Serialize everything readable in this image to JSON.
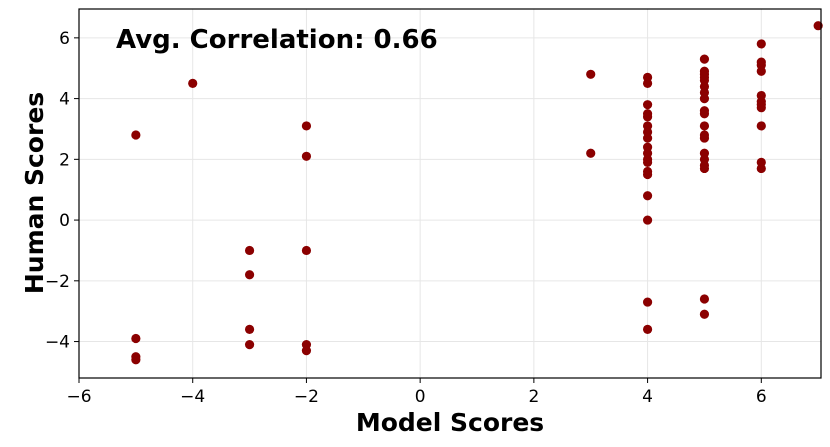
{
  "chart_data": {
    "type": "scatter",
    "xlabel": "Model Scores",
    "ylabel": "Human Scores",
    "annotation": "Avg. Correlation: 0.66",
    "xlim": [
      -6,
      7.05
    ],
    "ylim": [
      -5.2,
      6.95
    ],
    "x_ticks": [
      -6,
      -4,
      -2,
      0,
      2,
      4,
      6
    ],
    "y_ticks": [
      -4,
      -2,
      0,
      2,
      4,
      6
    ],
    "x_tick_labels": [
      "−6",
      "−4",
      "−2",
      "0",
      "2",
      "4",
      "6"
    ],
    "y_tick_labels": [
      "−4",
      "−2",
      "0",
      "2",
      "4",
      "6"
    ],
    "grid": true,
    "marker_color": "#8b0000",
    "points": [
      [
        -5,
        2.8
      ],
      [
        -5,
        -3.9
      ],
      [
        -5,
        -4.5
      ],
      [
        -5,
        -4.6
      ],
      [
        -4,
        4.5
      ],
      [
        -3,
        -1.0
      ],
      [
        -3,
        -1.8
      ],
      [
        -3,
        -3.6
      ],
      [
        -3,
        -4.1
      ],
      [
        -2,
        3.1
      ],
      [
        -2,
        2.1
      ],
      [
        -2,
        -1.0
      ],
      [
        -2,
        -4.1
      ],
      [
        -2,
        -4.3
      ],
      [
        3,
        4.8
      ],
      [
        3,
        2.2
      ],
      [
        4,
        4.7
      ],
      [
        4,
        4.5
      ],
      [
        4,
        3.8
      ],
      [
        4,
        3.5
      ],
      [
        4,
        3.4
      ],
      [
        4,
        3.1
      ],
      [
        4,
        2.9
      ],
      [
        4,
        2.7
      ],
      [
        4,
        2.4
      ],
      [
        4,
        2.2
      ],
      [
        4,
        2.0
      ],
      [
        4,
        1.9
      ],
      [
        4,
        1.6
      ],
      [
        4,
        1.5
      ],
      [
        4,
        0.8
      ],
      [
        4,
        0.0
      ],
      [
        4,
        -2.7
      ],
      [
        4,
        -3.6
      ],
      [
        5,
        5.3
      ],
      [
        5,
        4.9
      ],
      [
        5,
        4.8
      ],
      [
        5,
        4.7
      ],
      [
        5,
        4.6
      ],
      [
        5,
        4.4
      ],
      [
        5,
        4.2
      ],
      [
        5,
        4.0
      ],
      [
        5,
        3.6
      ],
      [
        5,
        3.5
      ],
      [
        5,
        3.1
      ],
      [
        5,
        2.8
      ],
      [
        5,
        2.7
      ],
      [
        5,
        2.2
      ],
      [
        5,
        2.0
      ],
      [
        5,
        1.8
      ],
      [
        5,
        1.7
      ],
      [
        5,
        -2.6
      ],
      [
        5,
        -3.1
      ],
      [
        6,
        5.8
      ],
      [
        6,
        5.2
      ],
      [
        6,
        5.1
      ],
      [
        6,
        4.9
      ],
      [
        6,
        4.1
      ],
      [
        6,
        3.9
      ],
      [
        6,
        3.8
      ],
      [
        6,
        3.7
      ],
      [
        6,
        3.1
      ],
      [
        6,
        1.9
      ],
      [
        6,
        1.7
      ],
      [
        7,
        6.4
      ]
    ]
  }
}
